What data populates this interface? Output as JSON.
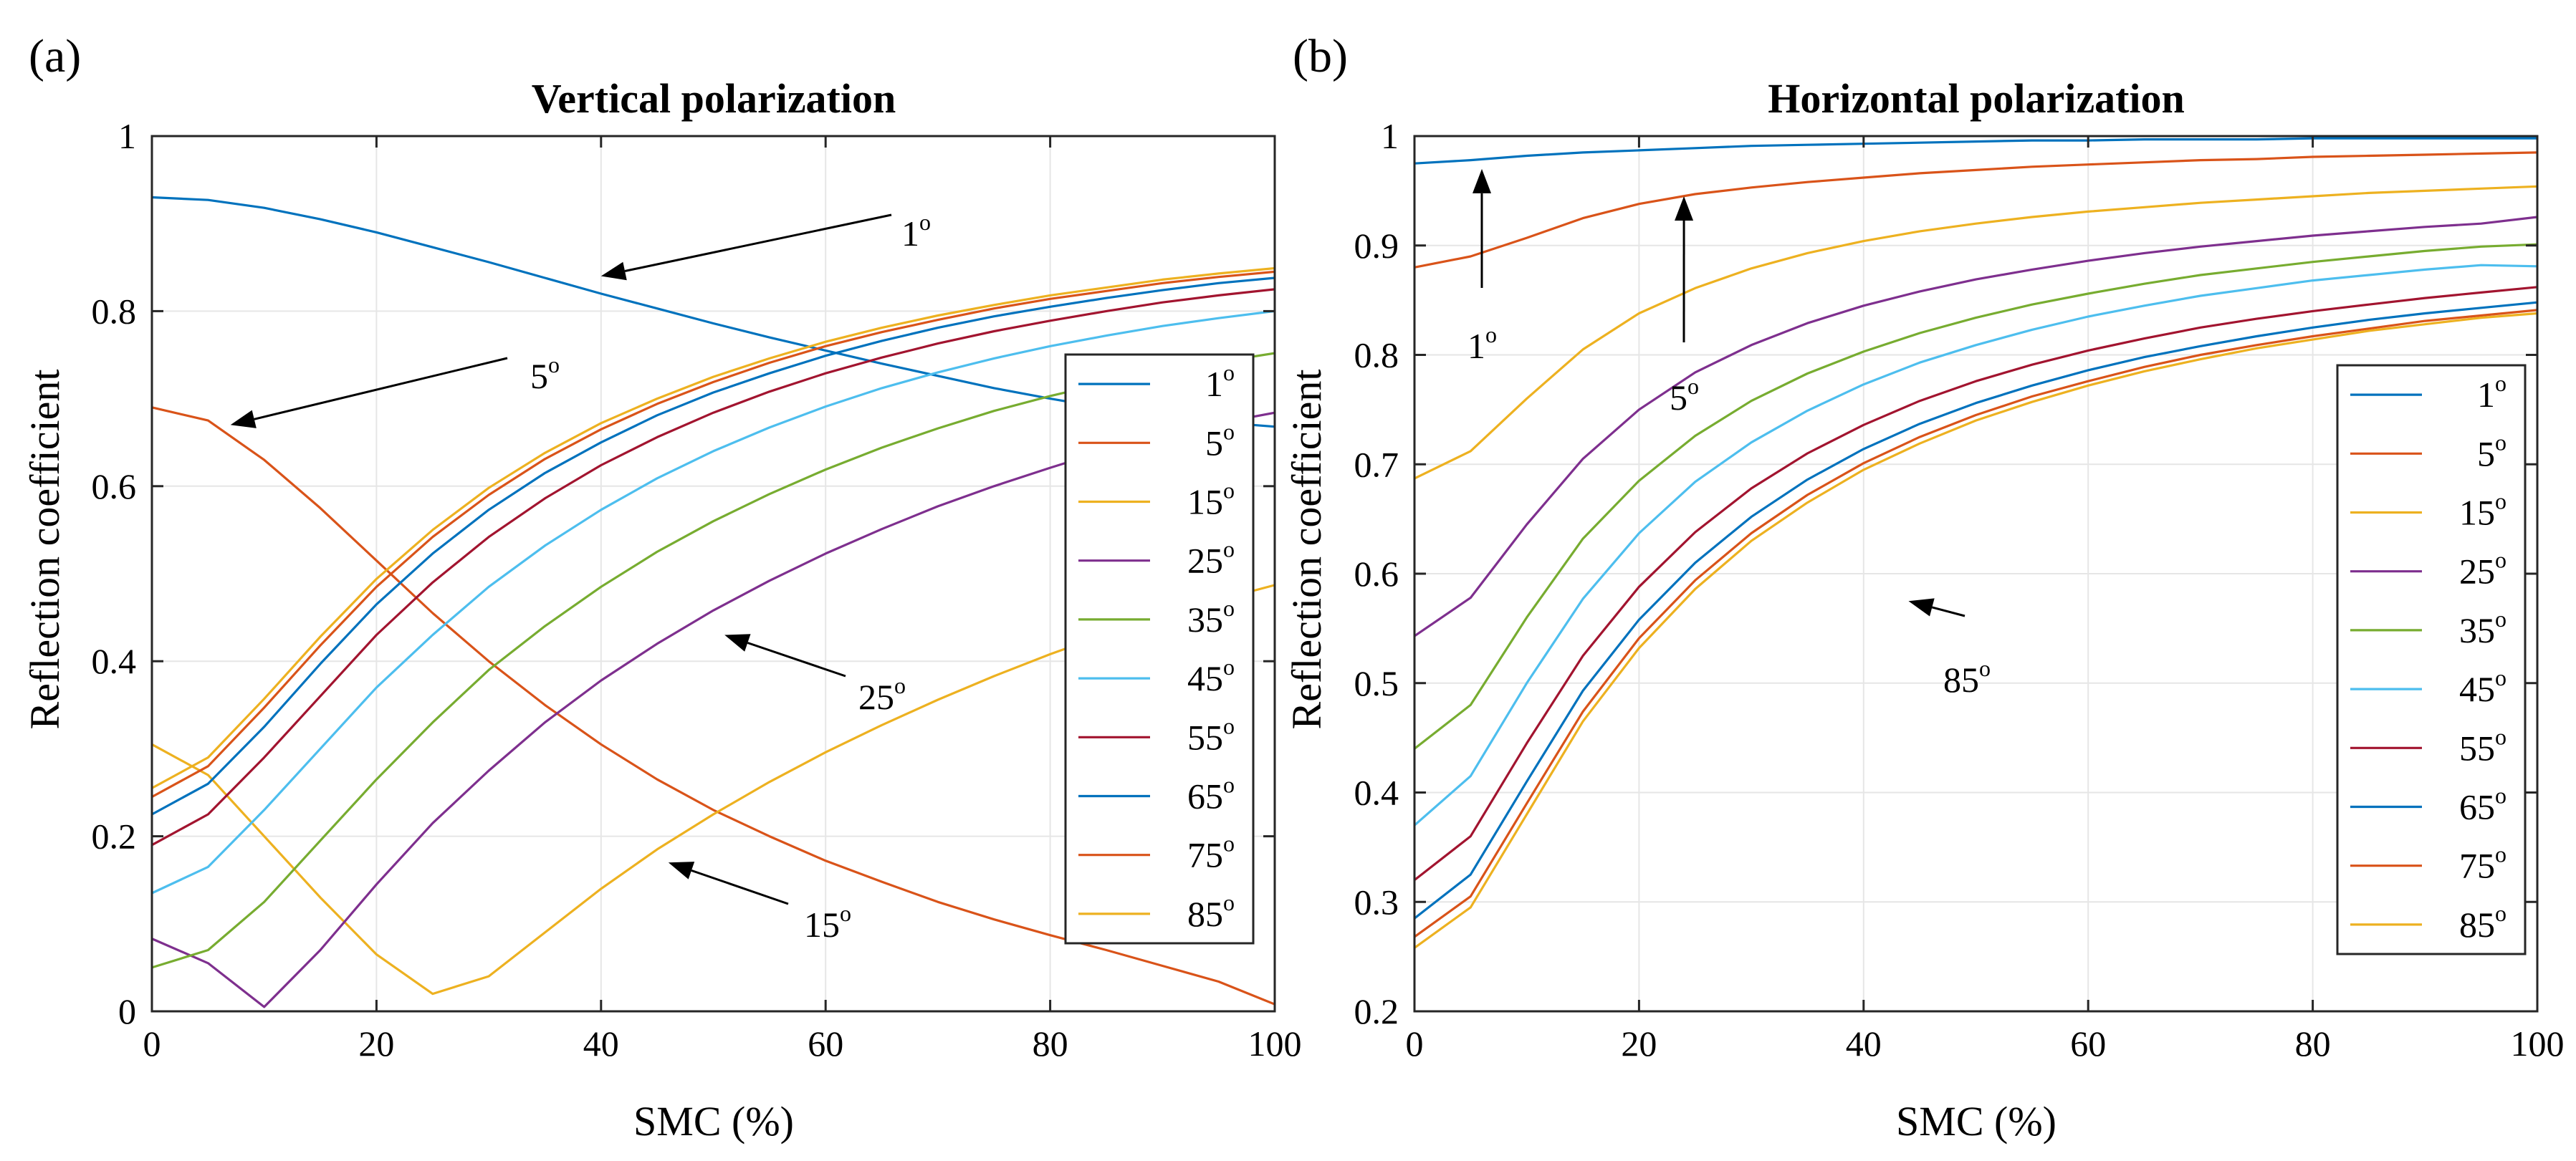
{
  "chart_data": [
    {
      "type": "line",
      "panel_label": "(a)",
      "title": "Vertical polarization",
      "xlabel": "SMC (%)",
      "ylabel": "Reflection coefficient",
      "xlim": [
        0,
        100
      ],
      "ylim": [
        0,
        1
      ],
      "xticks": [
        0,
        20,
        40,
        60,
        80,
        100
      ],
      "yticks": [
        0,
        0.2,
        0.4,
        0.6,
        0.8,
        1
      ],
      "ytick_labels": [
        "0",
        "0.2",
        "0.4",
        "0.6",
        "0.8",
        "1"
      ],
      "grid": true,
      "legend_position": "right-middle",
      "x": [
        0,
        5,
        10,
        15,
        20,
        25,
        30,
        35,
        40,
        45,
        50,
        55,
        60,
        65,
        70,
        75,
        80,
        85,
        90,
        95,
        100
      ],
      "series": [
        {
          "name": "1",
          "color": "#0072BD",
          "values": [
            0.93,
            0.927,
            0.918,
            0.905,
            0.89,
            0.873,
            0.856,
            0.838,
            0.82,
            0.803,
            0.786,
            0.77,
            0.755,
            0.74,
            0.726,
            0.712,
            0.7,
            0.689,
            0.679,
            0.673,
            0.668
          ]
        },
        {
          "name": "5",
          "color": "#D95319",
          "values": [
            0.69,
            0.675,
            0.63,
            0.575,
            0.515,
            0.455,
            0.4,
            0.35,
            0.305,
            0.265,
            0.23,
            0.2,
            0.172,
            0.148,
            0.125,
            0.105,
            0.087,
            0.07,
            0.052,
            0.034,
            0.008
          ]
        },
        {
          "name": "15",
          "color": "#EDB120",
          "values": [
            0.305,
            0.27,
            0.2,
            0.13,
            0.065,
            0.02,
            0.04,
            0.09,
            0.14,
            0.185,
            0.225,
            0.262,
            0.296,
            0.327,
            0.356,
            0.383,
            0.408,
            0.431,
            0.452,
            0.47,
            0.487
          ]
        },
        {
          "name": "25",
          "color": "#7E2F8E",
          "values": [
            0.083,
            0.055,
            0.005,
            0.07,
            0.145,
            0.215,
            0.275,
            0.33,
            0.378,
            0.42,
            0.458,
            0.492,
            0.523,
            0.551,
            0.577,
            0.6,
            0.621,
            0.641,
            0.658,
            0.672,
            0.684
          ]
        },
        {
          "name": "35",
          "color": "#77AC30",
          "values": [
            0.05,
            0.07,
            0.125,
            0.195,
            0.265,
            0.33,
            0.39,
            0.44,
            0.485,
            0.525,
            0.56,
            0.591,
            0.619,
            0.644,
            0.666,
            0.686,
            0.703,
            0.718,
            0.731,
            0.742,
            0.752
          ]
        },
        {
          "name": "45",
          "color": "#4DBEEE",
          "values": [
            0.135,
            0.165,
            0.23,
            0.3,
            0.37,
            0.43,
            0.485,
            0.532,
            0.573,
            0.609,
            0.64,
            0.667,
            0.691,
            0.712,
            0.73,
            0.746,
            0.76,
            0.772,
            0.783,
            0.792,
            0.8
          ]
        },
        {
          "name": "55",
          "color": "#A2142F",
          "values": [
            0.19,
            0.225,
            0.29,
            0.36,
            0.43,
            0.49,
            0.542,
            0.586,
            0.624,
            0.656,
            0.684,
            0.708,
            0.729,
            0.747,
            0.763,
            0.777,
            0.789,
            0.8,
            0.81,
            0.818,
            0.825
          ]
        },
        {
          "name": "65",
          "color": "#0072BD",
          "values": [
            0.225,
            0.26,
            0.325,
            0.397,
            0.465,
            0.523,
            0.573,
            0.615,
            0.65,
            0.681,
            0.707,
            0.729,
            0.749,
            0.766,
            0.781,
            0.794,
            0.805,
            0.815,
            0.824,
            0.832,
            0.838
          ]
        },
        {
          "name": "75",
          "color": "#D95319",
          "values": [
            0.245,
            0.28,
            0.347,
            0.418,
            0.485,
            0.542,
            0.59,
            0.631,
            0.665,
            0.694,
            0.719,
            0.741,
            0.76,
            0.776,
            0.79,
            0.803,
            0.814,
            0.823,
            0.832,
            0.839,
            0.845
          ]
        },
        {
          "name": "85",
          "color": "#EDB120",
          "values": [
            0.255,
            0.29,
            0.357,
            0.428,
            0.494,
            0.55,
            0.598,
            0.638,
            0.672,
            0.7,
            0.725,
            0.746,
            0.765,
            0.781,
            0.795,
            0.807,
            0.818,
            0.827,
            0.836,
            0.843,
            0.849
          ]
        }
      ],
      "annotations": [
        {
          "text": "1",
          "sup": "o",
          "target": [
            40,
            0.84
          ],
          "label_at": [
            68,
            0.91
          ]
        },
        {
          "text": "5",
          "sup": "o",
          "target": [
            7,
            0.67
          ],
          "label_at": [
            35,
            0.745
          ]
        },
        {
          "text": "25",
          "sup": "o",
          "target": [
            51,
            0.43
          ],
          "label_at": [
            66,
            0.385
          ]
        },
        {
          "text": "15",
          "sup": "o",
          "target": [
            46,
            0.17
          ],
          "label_at": [
            58,
            0.125
          ]
        }
      ]
    },
    {
      "type": "line",
      "panel_label": "(b)",
      "title": "Horizontal polarization",
      "xlabel": "SMC (%)",
      "ylabel": "Reflection coefficient",
      "xlim": [
        0,
        100
      ],
      "ylim": [
        0.2,
        1
      ],
      "xticks": [
        0,
        20,
        40,
        60,
        80,
        100
      ],
      "yticks": [
        0.2,
        0.3,
        0.4,
        0.5,
        0.6,
        0.7,
        0.8,
        0.9,
        1
      ],
      "ytick_labels": [
        "0.2",
        "0.3",
        "0.4",
        "0.5",
        "0.6",
        "0.7",
        "0.8",
        "0.9",
        "1"
      ],
      "grid": true,
      "legend_position": "bottom-right",
      "x": [
        0,
        5,
        10,
        15,
        20,
        25,
        30,
        35,
        40,
        45,
        50,
        55,
        60,
        65,
        70,
        75,
        80,
        85,
        90,
        95,
        100
      ],
      "series": [
        {
          "name": "1",
          "color": "#0072BD",
          "values": [
            0.975,
            0.978,
            0.982,
            0.985,
            0.987,
            0.989,
            0.991,
            0.992,
            0.993,
            0.994,
            0.995,
            0.996,
            0.996,
            0.997,
            0.997,
            0.997,
            0.998,
            0.998,
            0.998,
            0.998,
            0.998
          ]
        },
        {
          "name": "5",
          "color": "#D95319",
          "values": [
            0.88,
            0.89,
            0.907,
            0.925,
            0.938,
            0.947,
            0.953,
            0.958,
            0.962,
            0.966,
            0.969,
            0.972,
            0.974,
            0.976,
            0.978,
            0.979,
            0.981,
            0.982,
            0.983,
            0.984,
            0.985
          ]
        },
        {
          "name": "15",
          "color": "#EDB120",
          "values": [
            0.687,
            0.712,
            0.76,
            0.805,
            0.838,
            0.861,
            0.879,
            0.893,
            0.904,
            0.913,
            0.92,
            0.926,
            0.931,
            0.935,
            0.939,
            0.942,
            0.945,
            0.948,
            0.95,
            0.952,
            0.954
          ]
        },
        {
          "name": "25",
          "color": "#7E2F8E",
          "values": [
            0.543,
            0.578,
            0.645,
            0.705,
            0.75,
            0.784,
            0.809,
            0.829,
            0.845,
            0.858,
            0.869,
            0.878,
            0.886,
            0.893,
            0.899,
            0.904,
            0.909,
            0.913,
            0.917,
            0.92,
            0.926
          ]
        },
        {
          "name": "35",
          "color": "#77AC30",
          "values": [
            0.44,
            0.48,
            0.56,
            0.632,
            0.685,
            0.726,
            0.758,
            0.783,
            0.803,
            0.82,
            0.834,
            0.846,
            0.856,
            0.865,
            0.873,
            0.879,
            0.885,
            0.89,
            0.895,
            0.899,
            0.901
          ]
        },
        {
          "name": "45",
          "color": "#4DBEEE",
          "values": [
            0.37,
            0.415,
            0.5,
            0.577,
            0.637,
            0.684,
            0.72,
            0.749,
            0.773,
            0.793,
            0.809,
            0.823,
            0.835,
            0.845,
            0.854,
            0.861,
            0.868,
            0.873,
            0.878,
            0.882,
            0.881
          ]
        },
        {
          "name": "55",
          "color": "#A2142F",
          "values": [
            0.32,
            0.36,
            0.445,
            0.525,
            0.588,
            0.638,
            0.678,
            0.71,
            0.736,
            0.758,
            0.776,
            0.791,
            0.804,
            0.815,
            0.825,
            0.833,
            0.84,
            0.846,
            0.852,
            0.857,
            0.862
          ]
        },
        {
          "name": "65",
          "color": "#0072BD",
          "values": [
            0.285,
            0.325,
            0.41,
            0.493,
            0.558,
            0.61,
            0.652,
            0.686,
            0.714,
            0.737,
            0.756,
            0.772,
            0.786,
            0.798,
            0.808,
            0.817,
            0.825,
            0.832,
            0.838,
            0.843,
            0.848
          ]
        },
        {
          "name": "75",
          "color": "#D95319",
          "values": [
            0.268,
            0.305,
            0.39,
            0.474,
            0.541,
            0.594,
            0.637,
            0.672,
            0.701,
            0.725,
            0.745,
            0.762,
            0.776,
            0.789,
            0.8,
            0.809,
            0.817,
            0.824,
            0.831,
            0.836,
            0.841
          ]
        },
        {
          "name": "85",
          "color": "#EDB120",
          "values": [
            0.258,
            0.295,
            0.38,
            0.465,
            0.532,
            0.586,
            0.63,
            0.665,
            0.695,
            0.719,
            0.74,
            0.757,
            0.772,
            0.785,
            0.796,
            0.806,
            0.814,
            0.822,
            0.828,
            0.834,
            0.838
          ]
        }
      ],
      "annotations": [
        {
          "text": "1",
          "sup": "o",
          "target": [
            6,
            0.97
          ],
          "label_at": [
            6,
            0.835
          ]
        },
        {
          "text": "5",
          "sup": "o",
          "target": [
            24,
            0.945
          ],
          "label_at": [
            24,
            0.79
          ]
        },
        {
          "text": "85",
          "sup": "o",
          "target": [
            44,
            0.575
          ],
          "label_at": [
            50,
            0.525
          ]
        }
      ]
    }
  ]
}
